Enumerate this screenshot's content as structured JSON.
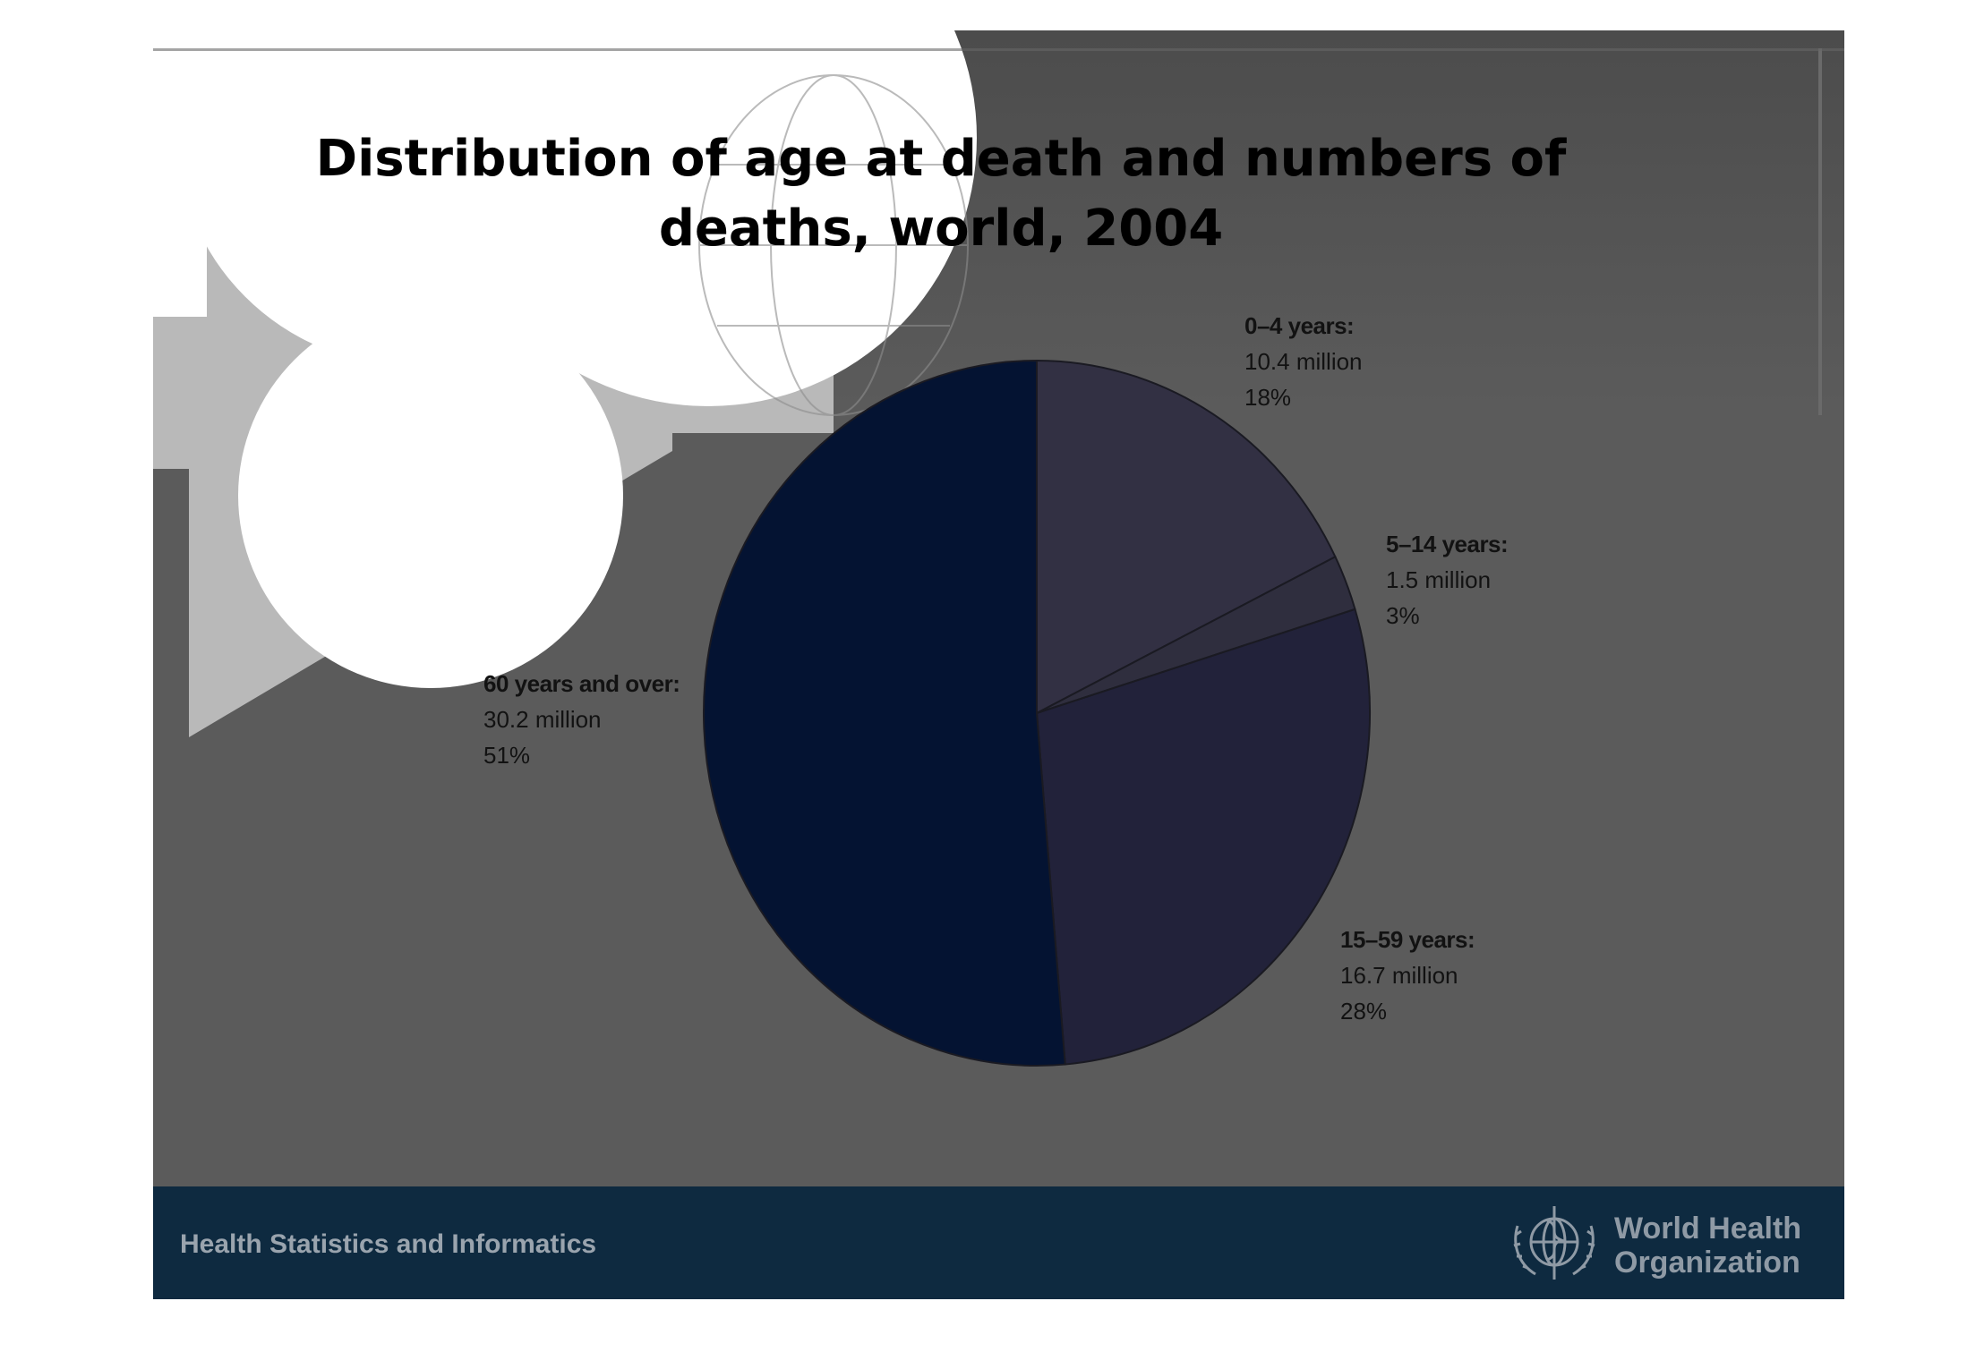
{
  "slide": {
    "title_line1": "Distribution of age at death and numbers of",
    "title_line2": "deaths, world, 2004",
    "background_color": "#5b5b5b"
  },
  "chart_data": {
    "type": "pie",
    "title": "Distribution of age at death and numbers of deaths, world, 2004",
    "slices": [
      {
        "label": "0–4 years:",
        "value": 10.4,
        "value_text": "10.4 million",
        "percent": 18,
        "percent_text": "18%",
        "color": "#323043"
      },
      {
        "label": "5–14 years:",
        "value": 1.5,
        "value_text": "1.5 million",
        "percent": 3,
        "percent_text": "3%",
        "color": "#2f2e3e"
      },
      {
        "label": "15–59 years:",
        "value": 16.7,
        "value_text": "16.7 million",
        "percent": 28,
        "percent_text": "28%",
        "color": "#22223a"
      },
      {
        "label": "60 years and over:",
        "value": 30.2,
        "value_text": "30.2 million",
        "percent": 51,
        "percent_text": "51%",
        "color": "#041332"
      }
    ],
    "start_angle": "12 o'clock",
    "direction": "clockwise",
    "legend": "none (labels beside slices)"
  },
  "footer": {
    "text": "Health Statistics and Informatics",
    "org_line1": "World Health",
    "org_line2": "Organization",
    "logo_icon": "who-emblem-icon",
    "background_color": "#0e2a40"
  }
}
